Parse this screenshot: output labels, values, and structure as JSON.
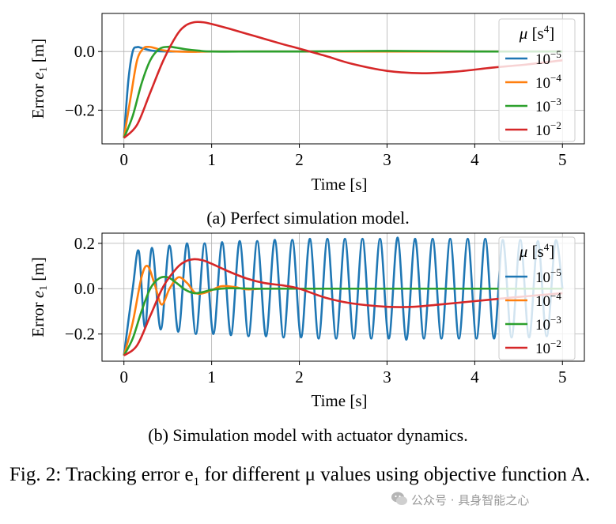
{
  "chart_data": [
    {
      "type": "line",
      "subcaption": "(a) Perfect simulation model.",
      "xlabel": "Time [s]",
      "ylabel": "Error e",
      "ylabel_sub": "1",
      "ylabel_unit": "[m]",
      "xlim": [
        -0.25,
        5.25
      ],
      "ylim": [
        -0.315,
        0.13
      ],
      "xticks": [
        0,
        1,
        2,
        3,
        4,
        5
      ],
      "xtick_labels": [
        "0",
        "1",
        "2",
        "3",
        "4",
        "5"
      ],
      "yticks": [
        -0.2,
        0.0
      ],
      "ytick_labels": [
        "−0.2",
        "0.0"
      ],
      "grid": true,
      "legend": {
        "title": "μ [s4]",
        "position": "top-right"
      },
      "series": [
        {
          "name": "10−5",
          "base": "10",
          "exp": "−5",
          "color": "#1f77b4",
          "x": [
            0,
            0.05,
            0.1,
            0.15,
            0.2,
            0.3,
            0.4,
            0.6,
            1.0,
            2.0,
            3.0,
            4.0,
            5.0
          ],
          "y": [
            -0.295,
            -0.1,
            0.0,
            0.015,
            0.012,
            0.004,
            0.001,
            0.0,
            0.0,
            0.0,
            0.0,
            0.0,
            0.0
          ]
        },
        {
          "name": "10−4",
          "base": "10",
          "exp": "−4",
          "color": "#ff7f0e",
          "x": [
            0,
            0.08,
            0.15,
            0.22,
            0.28,
            0.35,
            0.45,
            0.6,
            0.8,
            1.0,
            2.0,
            3.0,
            4.0,
            5.0
          ],
          "y": [
            -0.295,
            -0.15,
            -0.03,
            0.01,
            0.016,
            0.012,
            0.004,
            0.0,
            -0.001,
            0.0,
            0.0,
            0.0,
            0.0,
            0.0
          ]
        },
        {
          "name": "10−3",
          "base": "10",
          "exp": "−3",
          "color": "#2ca02c",
          "x": [
            0,
            0.1,
            0.2,
            0.3,
            0.4,
            0.5,
            0.6,
            0.7,
            0.85,
            1.0,
            1.5,
            2.0,
            3.0,
            4.0,
            5.0
          ],
          "y": [
            -0.295,
            -0.22,
            -0.11,
            -0.03,
            0.008,
            0.016,
            0.013,
            0.008,
            0.003,
            0.0,
            0.0,
            0.0,
            0.002,
            0.0,
            0.0
          ]
        },
        {
          "name": "10−2",
          "base": "10",
          "exp": "−2",
          "color": "#d62728",
          "x": [
            0,
            0.15,
            0.3,
            0.45,
            0.6,
            0.7,
            0.8,
            0.9,
            1.0,
            1.2,
            1.5,
            1.8,
            2.0,
            2.3,
            2.6,
            3.0,
            3.4,
            3.8,
            4.2,
            4.6,
            5.0
          ],
          "y": [
            -0.295,
            -0.25,
            -0.14,
            -0.03,
            0.055,
            0.088,
            0.1,
            0.1,
            0.094,
            0.078,
            0.052,
            0.026,
            0.01,
            -0.015,
            -0.042,
            -0.066,
            -0.074,
            -0.068,
            -0.055,
            -0.044,
            -0.03
          ]
        }
      ]
    },
    {
      "type": "line",
      "subcaption": "(b) Simulation model with actuator dynamics.",
      "xlabel": "Time [s]",
      "ylabel": "Error e",
      "ylabel_sub": "1",
      "ylabel_unit": "[m]",
      "xlim": [
        -0.25,
        5.25
      ],
      "ylim": [
        -0.32,
        0.245
      ],
      "xticks": [
        0,
        1,
        2,
        3,
        4,
        5
      ],
      "xtick_labels": [
        "0",
        "1",
        "2",
        "3",
        "4",
        "5"
      ],
      "yticks": [
        -0.2,
        0.0,
        0.2
      ],
      "ytick_labels": [
        "−0.2",
        "0.0",
        "0.2"
      ],
      "grid": true,
      "legend": {
        "title": "μ [s4]",
        "position": "top-right"
      },
      "series": [
        {
          "name": "10−5",
          "base": "10",
          "exp": "−5",
          "color": "#1f77b4",
          "x": [
            0,
            0.1,
            0.17,
            0.24,
            0.32,
            0.42,
            0.52,
            0.62,
            0.72,
            0.82,
            0.92,
            1.02,
            1.12,
            1.22,
            1.32,
            1.42,
            1.52,
            1.62,
            1.72,
            1.82,
            1.92,
            2.02,
            2.12,
            2.22,
            2.32,
            2.42,
            2.52,
            2.62,
            2.72,
            2.82,
            2.92,
            3.02,
            3.12,
            3.22,
            3.32,
            3.42,
            3.52,
            3.62,
            3.72,
            3.82,
            3.92,
            4.02,
            4.12,
            4.22,
            4.32,
            4.42,
            4.52,
            4.62,
            4.72,
            4.82,
            4.92,
            5.0
          ],
          "y": [
            -0.295,
            0.0,
            0.165,
            -0.17,
            0.18,
            -0.18,
            0.19,
            -0.19,
            0.2,
            -0.2,
            0.2,
            -0.2,
            0.205,
            -0.205,
            0.21,
            -0.21,
            0.21,
            -0.21,
            0.215,
            -0.215,
            0.215,
            -0.215,
            0.22,
            -0.22,
            0.22,
            -0.22,
            0.22,
            -0.22,
            0.22,
            -0.22,
            0.22,
            -0.22,
            0.225,
            -0.225,
            0.22,
            -0.22,
            0.22,
            -0.22,
            0.22,
            -0.22,
            0.22,
            -0.22,
            0.22,
            -0.22,
            0.215,
            -0.215,
            0.215,
            -0.215,
            0.21,
            -0.21,
            0.21,
            0.0
          ]
        },
        {
          "name": "10−4",
          "base": "10",
          "exp": "−4",
          "color": "#ff7f0e",
          "x": [
            0,
            0.1,
            0.2,
            0.27,
            0.35,
            0.43,
            0.52,
            0.62,
            0.72,
            0.82,
            0.95,
            1.1,
            1.25,
            1.4,
            1.6,
            2.0,
            3.0,
            4.0,
            5.0
          ],
          "y": [
            -0.295,
            -0.15,
            0.05,
            0.1,
            0.02,
            -0.07,
            0.0,
            0.05,
            0.025,
            -0.02,
            -0.015,
            0.01,
            0.008,
            -0.003,
            0.0,
            0.0,
            0.0,
            0.0,
            0.0
          ]
        },
        {
          "name": "10−3",
          "base": "10",
          "exp": "−3",
          "color": "#2ca02c",
          "x": [
            0,
            0.1,
            0.2,
            0.3,
            0.4,
            0.5,
            0.6,
            0.7,
            0.8,
            0.9,
            1.0,
            1.2,
            1.5,
            2.0,
            3.0,
            4.0,
            5.0
          ],
          "y": [
            -0.295,
            -0.22,
            -0.1,
            0.0,
            0.045,
            0.05,
            0.025,
            -0.005,
            -0.02,
            -0.015,
            -0.005,
            0.002,
            0.0,
            0.0,
            0.0,
            0.0,
            0.0
          ]
        },
        {
          "name": "10−2",
          "base": "10",
          "exp": "−2",
          "color": "#d62728",
          "x": [
            0,
            0.15,
            0.3,
            0.45,
            0.6,
            0.7,
            0.8,
            0.9,
            1.0,
            1.2,
            1.4,
            1.6,
            1.8,
            2.0,
            2.3,
            2.6,
            3.0,
            3.3,
            3.6,
            4.0,
            4.4,
            4.7,
            5.0
          ],
          "y": [
            -0.295,
            -0.25,
            -0.12,
            0.01,
            0.09,
            0.12,
            0.13,
            0.125,
            0.11,
            0.075,
            0.045,
            0.025,
            0.015,
            0.0,
            -0.04,
            -0.065,
            -0.08,
            -0.08,
            -0.07,
            -0.055,
            -0.04,
            -0.03,
            -0.02
          ]
        }
      ]
    }
  ],
  "caption_main": "Fig. 2: Tracking error e",
  "caption_sub_index": "1",
  "caption_rest": " for different μ values using objective function A.",
  "watermark": "公众号 · 具身智能之心"
}
